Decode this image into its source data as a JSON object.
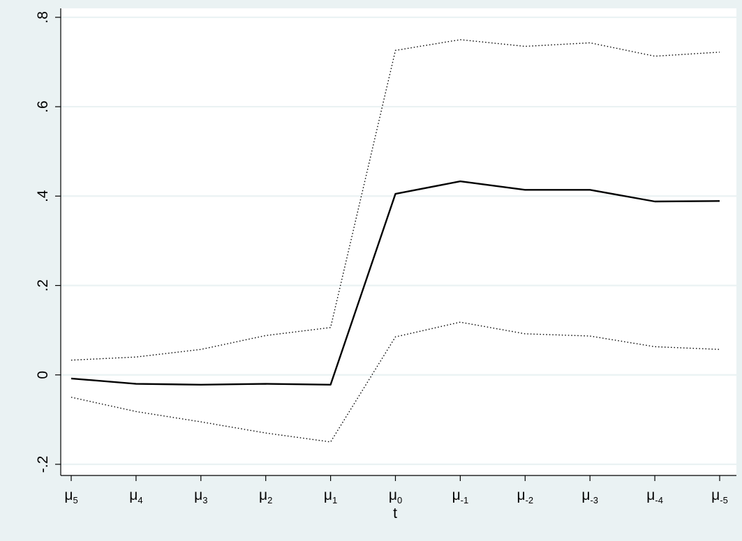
{
  "chart_data": {
    "type": "line",
    "xlabel": "t",
    "ylabel": "",
    "ylim": [
      -0.225,
      0.82
    ],
    "yticks": [
      {
        "value": -0.2,
        "label": "-.2"
      },
      {
        "value": 0,
        "label": "0"
      },
      {
        "value": 0.2,
        "label": ".2"
      },
      {
        "value": 0.4,
        "label": ".4"
      },
      {
        "value": 0.6,
        "label": ".6"
      },
      {
        "value": 0.8,
        "label": ".8"
      }
    ],
    "categories": [
      {
        "base": "μ",
        "sub": "5"
      },
      {
        "base": "μ",
        "sub": "4"
      },
      {
        "base": "μ",
        "sub": "3"
      },
      {
        "base": "μ",
        "sub": "2"
      },
      {
        "base": "μ",
        "sub": "1"
      },
      {
        "base": "μ",
        "sub": "0"
      },
      {
        "base": "μ",
        "sub": "-1"
      },
      {
        "base": "μ",
        "sub": "-2"
      },
      {
        "base": "μ",
        "sub": "-3"
      },
      {
        "base": "μ",
        "sub": "-4"
      },
      {
        "base": "μ",
        "sub": "-5"
      }
    ],
    "series": [
      {
        "style": "solid",
        "color": "#000000",
        "values": [
          -0.008,
          -0.02,
          -0.022,
          -0.02,
          -0.022,
          0.405,
          0.433,
          0.414,
          0.414,
          0.388,
          0.389
        ]
      },
      {
        "style": "dotted",
        "color": "#000000",
        "values": [
          0.033,
          0.04,
          0.057,
          0.088,
          0.106,
          0.726,
          0.75,
          0.735,
          0.743,
          0.713,
          0.722
        ]
      },
      {
        "style": "dotted",
        "color": "#000000",
        "values": [
          -0.05,
          -0.082,
          -0.105,
          -0.13,
          -0.15,
          0.085,
          0.118,
          0.092,
          0.087,
          0.063,
          0.057
        ]
      }
    ],
    "grid": true,
    "colors": {
      "background": "#eaf2f3",
      "plot": "#ffffff",
      "grid": "#eaf2f3",
      "line": "#000000"
    }
  }
}
